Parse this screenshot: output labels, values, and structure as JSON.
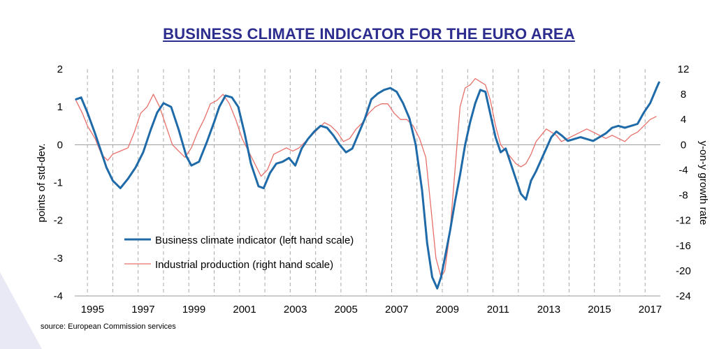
{
  "title": "BUSINESS CLIMATE INDICATOR FOR THE EURO AREA",
  "source": "source: European Commission services",
  "chart_data": {
    "type": "line",
    "title": "BUSINESS CLIMATE INDICATOR FOR THE EURO AREA",
    "ylabel": "points of std-dev.",
    "y2label": "y-on-y growth rate",
    "ylim": [
      -4,
      2
    ],
    "y2lim": [
      -24,
      12
    ],
    "yticks": [
      "2",
      "1",
      "0",
      "-1",
      "-2",
      "-3",
      "-4"
    ],
    "y2ticks": [
      "12",
      "8",
      "4",
      "0",
      "-4",
      "-8",
      "-12",
      "-16",
      "-20",
      "-24"
    ],
    "xticks": [
      "1995",
      "1997",
      "1999",
      "2001",
      "2003",
      "2005",
      "2007",
      "2009",
      "2011",
      "2013",
      "2015",
      "2017"
    ],
    "xlim": [
      1994.5,
      2017.6
    ],
    "grid": "vertical dashed at each year, horizontal line at zero",
    "legend_position": "bottom-left",
    "colors": {
      "bci": "#1f6aa8",
      "ip": "#e8706a",
      "grid": "#aaaaaa",
      "title": "#2d2d8f"
    },
    "series": [
      {
        "name": "Business climate indicator (left hand scale)",
        "axis": "left",
        "x": [
          1994.55,
          1994.75,
          1995.0,
          1995.3,
          1995.55,
          1995.75,
          1996.0,
          1996.3,
          1996.6,
          1996.9,
          1997.2,
          1997.5,
          1997.75,
          1998.0,
          1998.3,
          1998.6,
          1998.9,
          1999.1,
          1999.4,
          1999.7,
          2000.0,
          2000.2,
          2000.45,
          2000.7,
          2000.95,
          2001.2,
          2001.45,
          2001.75,
          2001.95,
          2002.2,
          2002.45,
          2002.7,
          2002.95,
          2003.2,
          2003.45,
          2003.7,
          2003.95,
          2004.2,
          2004.45,
          2004.7,
          2004.95,
          2005.2,
          2005.45,
          2005.7,
          2005.95,
          2006.2,
          2006.45,
          2006.7,
          2006.95,
          2007.2,
          2007.45,
          2007.7,
          2007.95,
          2008.2,
          2008.4,
          2008.6,
          2008.8,
          2008.95,
          2009.1,
          2009.3,
          2009.5,
          2009.7,
          2009.9,
          2010.1,
          2010.3,
          2010.5,
          2010.7,
          2010.9,
          2011.1,
          2011.3,
          2011.5,
          2011.7,
          2011.9,
          2012.1,
          2012.3,
          2012.5,
          2012.7,
          2012.9,
          2013.1,
          2013.3,
          2013.5,
          2013.7,
          2013.95,
          2014.2,
          2014.45,
          2014.7,
          2014.95,
          2015.2,
          2015.45,
          2015.7,
          2015.95,
          2016.2,
          2016.45,
          2016.7,
          2016.95,
          2017.2,
          2017.45,
          2017.55
        ],
        "values": [
          1.2,
          1.25,
          0.85,
          0.3,
          -0.2,
          -0.6,
          -0.95,
          -1.15,
          -0.9,
          -0.6,
          -0.2,
          0.4,
          0.85,
          1.1,
          1.0,
          0.4,
          -0.3,
          -0.55,
          -0.45,
          0.05,
          0.6,
          1.0,
          1.3,
          1.25,
          1.0,
          0.3,
          -0.5,
          -1.1,
          -1.15,
          -0.75,
          -0.5,
          -0.45,
          -0.35,
          -0.55,
          -0.1,
          0.15,
          0.35,
          0.5,
          0.45,
          0.25,
          0.0,
          -0.2,
          -0.1,
          0.3,
          0.7,
          1.2,
          1.35,
          1.45,
          1.5,
          1.4,
          1.1,
          0.7,
          0.0,
          -1.2,
          -2.6,
          -3.5,
          -3.8,
          -3.5,
          -3.0,
          -2.3,
          -1.5,
          -0.8,
          0.0,
          0.6,
          1.1,
          1.45,
          1.4,
          0.8,
          0.2,
          -0.2,
          -0.1,
          -0.5,
          -0.9,
          -1.3,
          -1.45,
          -0.95,
          -0.7,
          -0.4,
          -0.1,
          0.2,
          0.35,
          0.25,
          0.1,
          0.15,
          0.2,
          0.15,
          0.1,
          0.2,
          0.3,
          0.45,
          0.5,
          0.45,
          0.5,
          0.55,
          0.85,
          1.1,
          1.5,
          1.65
        ]
      },
      {
        "name": "Industrial production (right hand scale)",
        "axis": "right",
        "x": [
          1994.55,
          1994.8,
          1995.0,
          1995.3,
          1995.55,
          1995.8,
          1996.0,
          1996.3,
          1996.6,
          1996.85,
          1997.1,
          1997.35,
          1997.6,
          1997.85,
          1998.1,
          1998.35,
          1998.6,
          1998.85,
          1999.1,
          1999.35,
          1999.6,
          1999.85,
          2000.1,
          2000.35,
          2000.6,
          2000.85,
          2001.1,
          2001.35,
          2001.6,
          2001.85,
          2002.1,
          2002.35,
          2002.6,
          2002.85,
          2003.1,
          2003.35,
          2003.6,
          2003.85,
          2004.1,
          2004.35,
          2004.6,
          2004.85,
          2005.1,
          2005.35,
          2005.6,
          2005.85,
          2006.1,
          2006.35,
          2006.6,
          2006.85,
          2007.1,
          2007.35,
          2007.6,
          2007.85,
          2008.1,
          2008.35,
          2008.55,
          2008.75,
          2008.95,
          2009.1,
          2009.3,
          2009.5,
          2009.7,
          2009.9,
          2010.1,
          2010.3,
          2010.5,
          2010.7,
          2010.9,
          2011.1,
          2011.3,
          2011.5,
          2011.7,
          2011.9,
          2012.1,
          2012.3,
          2012.5,
          2012.7,
          2012.9,
          2013.1,
          2013.3,
          2013.5,
          2013.7,
          2013.95,
          2014.2,
          2014.45,
          2014.7,
          2014.95,
          2015.2,
          2015.45,
          2015.7,
          2015.95,
          2016.2,
          2016.45,
          2016.7,
          2016.95,
          2017.2,
          2017.45
        ],
        "values": [
          7,
          5,
          3,
          1,
          -1.5,
          -2.5,
          -1.5,
          -1.0,
          -0.5,
          2,
          5,
          6,
          8,
          6,
          3,
          0,
          -1,
          -2,
          -0.5,
          2,
          4,
          6.5,
          7,
          8,
          6.5,
          4,
          1,
          -1,
          -3,
          -5,
          -4,
          -1.5,
          -1,
          -0.5,
          -1,
          -0.5,
          0.5,
          1.5,
          2.5,
          3.5,
          3,
          2,
          0.5,
          1,
          2.5,
          3.5,
          5,
          6,
          6.5,
          6.5,
          5,
          4,
          4,
          3,
          1,
          -2,
          -10,
          -18,
          -21,
          -20,
          -14,
          -4,
          6,
          9,
          9.5,
          10.5,
          10,
          9.5,
          7,
          3,
          0,
          -1,
          -2,
          -3,
          -3.5,
          -3,
          -1.5,
          0.5,
          1.5,
          2.5,
          2,
          1.5,
          0.5,
          1,
          1.5,
          2,
          2.5,
          2,
          1.5,
          1,
          1.5,
          1,
          0.5,
          1.5,
          2,
          3,
          4,
          4.5
        ]
      }
    ]
  }
}
